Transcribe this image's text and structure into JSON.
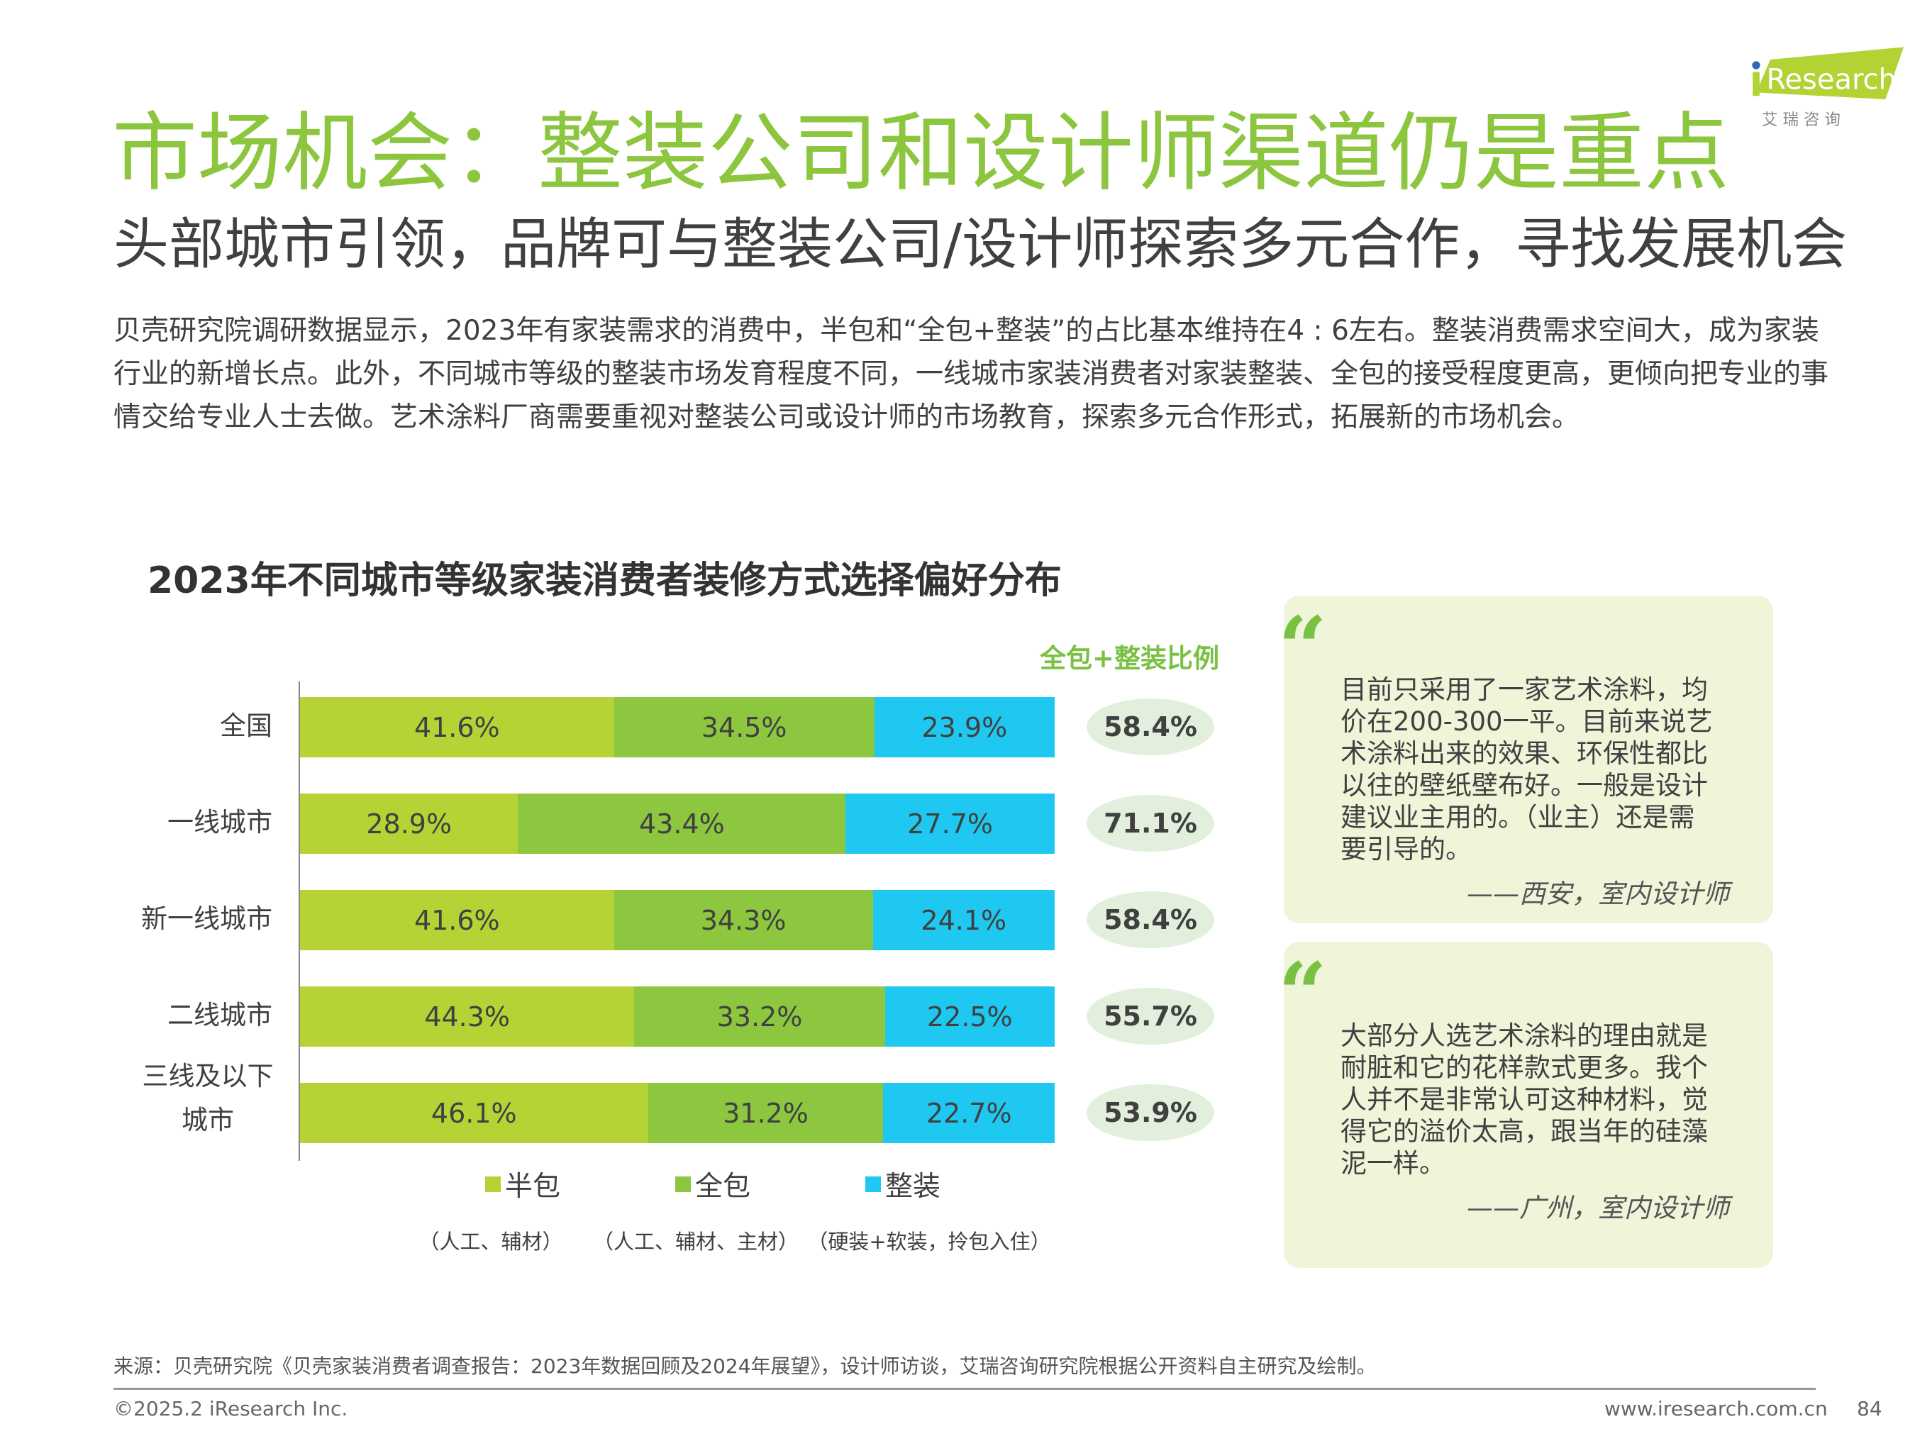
{
  "header": {
    "title": "市场机会：整装公司和设计师渠道仍是重点",
    "subtitle": "头部城市引领，品牌可与整装公司/设计师探索多元合作，寻找发展机会",
    "logo_text": "iResearch",
    "logo_cn": "艾 瑞 咨 询"
  },
  "intro": "贝壳研究院调研数据显示，2023年有家装需求的消费中，半包和“全包+整装”的占比基本维持在4 : 6左右。整装消费需求空间大，成为家装行业的新增长点。此外，不同城市等级的整装市场发育程度不同，一线城市家装消费者对家装整装、全包的接受程度更高，更倾向把专业的事情交给专业人士去做。艺术涂料厂商需要重视对整装公司或设计师的市场教育，探索多元合作形式，拓展新的市场机会。",
  "chart_data": {
    "type": "bar",
    "orientation": "horizontal-stacked-100",
    "title": "2023年不同城市等级家装消费者装修方式选择偏好分布",
    "categories": [
      "全国",
      "一线城市",
      "新一线城市",
      "二线城市",
      "三线及以下城市"
    ],
    "series": [
      {
        "name": "半包",
        "note": "（人工、辅材）",
        "color": "#b5d334",
        "values": [
          41.6,
          28.9,
          41.6,
          44.3,
          46.1
        ]
      },
      {
        "name": "全包",
        "note": "（人工、辅材、主材）",
        "color": "#8dc63f",
        "values": [
          34.5,
          43.4,
          34.3,
          33.2,
          31.2
        ]
      },
      {
        "name": "整装",
        "note": "（硬装+软装，拎包入住）",
        "color": "#1ec8f0",
        "values": [
          23.9,
          27.7,
          24.1,
          22.5,
          22.7
        ]
      }
    ],
    "ratio_title": "全包+整装比例",
    "ratio_values": [
      "58.4%",
      "71.1%",
      "58.4%",
      "55.7%",
      "53.9%"
    ],
    "xlim": [
      0,
      100
    ],
    "legend": "bottom"
  },
  "quotes": [
    {
      "text": "目前只采用了一家艺术涂料，均价在200-300一平。目前来说艺术涂料出来的效果、环保性都比以往的壁纸壁布好。一般是设计建议业主用的。（业主）还是需要引导的。",
      "attribution": "——西安，室内设计师"
    },
    {
      "text": "大部分人选艺术涂料的理由就是耐脏和它的花样款式更多。我个人并不是非常认可这种材料，觉得它的溢价太高，跟当年的硅藻泥一样。",
      "attribution": "——广州，室内设计师"
    }
  ],
  "footer": {
    "source": "来源：贝壳研究院《贝壳家装消费者调查报告：2023年数据回顾及2024年展望》，设计师访谈，艾瑞咨询研究院根据公开资料自主研究及绘制。",
    "copyright": "©2025.2 iResearch Inc.",
    "website": "www.iresearch.com.cn",
    "page": "84"
  }
}
